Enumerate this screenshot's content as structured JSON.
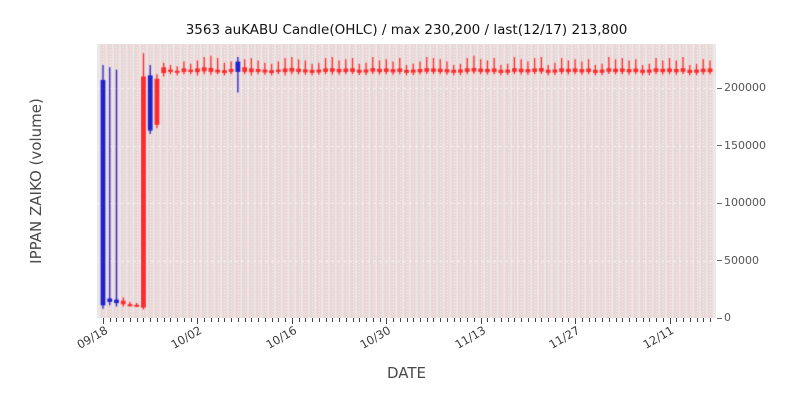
{
  "chart_data": {
    "type": "candlestick",
    "title": "3563 auKABU Candle(OHLC) / max 230,200 / last(12/17) 213,800",
    "xlabel": "DATE",
    "ylabel": "IPPAN ZAIKO (volume)",
    "x_tick_labels": [
      "09/18",
      "10/02",
      "10/16",
      "10/30",
      "11/13",
      "11/27",
      "12/11"
    ],
    "y_ticks": [
      0,
      50000,
      100000,
      150000,
      200000
    ],
    "ylim": [
      0,
      238000
    ],
    "max_value": 230200,
    "last": {
      "date": "12/17",
      "value": 213800
    },
    "legend": "none",
    "grid": "striped-days-with-white-dashes",
    "colors": {
      "up": "#2222cc",
      "down": "#ff2b2b",
      "plot_bg": "#e9e9e9",
      "stripe": "rgba(255,70,70,0.12)"
    },
    "columns": [
      "date",
      "open",
      "high",
      "low",
      "close",
      "direction"
    ],
    "candles": [
      [
        "09/18",
        11000,
        220000,
        8000,
        207000,
        "up"
      ],
      [
        "09/19",
        14000,
        218000,
        11000,
        17000,
        "up"
      ],
      [
        "09/20",
        13000,
        216000,
        10000,
        16000,
        "up"
      ],
      [
        "09/21",
        15000,
        18000,
        10000,
        12000,
        "down"
      ],
      [
        "09/22",
        12000,
        14000,
        10000,
        11000,
        "down"
      ],
      [
        "09/23",
        11500,
        13000,
        9500,
        10500,
        "down"
      ],
      [
        "09/24",
        210000,
        230200,
        7500,
        9000,
        "down"
      ],
      [
        "09/25",
        163000,
        220000,
        160000,
        211000,
        "up"
      ],
      [
        "09/26",
        208000,
        212000,
        165000,
        168000,
        "down"
      ],
      [
        "09/27",
        218000,
        222000,
        210000,
        213000,
        "down"
      ],
      [
        "09/28",
        216000,
        220000,
        212000,
        214000,
        "down"
      ],
      [
        "09/29",
        215000,
        219000,
        211000,
        213500,
        "down"
      ],
      [
        "09/30",
        217000,
        223000,
        212000,
        214000,
        "down"
      ],
      [
        "10/01",
        216000,
        221000,
        212000,
        214000,
        "down"
      ],
      [
        "10/02",
        217000,
        224000,
        211000,
        213800,
        "down"
      ],
      [
        "10/03",
        218000,
        227000,
        212000,
        214500,
        "down"
      ],
      [
        "10/04",
        217500,
        228000,
        211500,
        214000,
        "down"
      ],
      [
        "10/05",
        216000,
        226000,
        212000,
        213500,
        "down"
      ],
      [
        "10/06",
        215500,
        222000,
        211000,
        213000,
        "down"
      ],
      [
        "10/07",
        216500,
        223000,
        212000,
        214000,
        "down"
      ],
      [
        "10/08",
        214000,
        227000,
        196000,
        223000,
        "up"
      ],
      [
        "10/09",
        218000,
        225000,
        212000,
        214000,
        "down"
      ],
      [
        "10/10",
        217000,
        226000,
        211000,
        213800,
        "down"
      ],
      [
        "10/11",
        216500,
        224000,
        212000,
        214000,
        "down"
      ],
      [
        "10/12",
        216000,
        222000,
        211500,
        213500,
        "down"
      ],
      [
        "10/13",
        215500,
        221000,
        211000,
        213000,
        "down"
      ],
      [
        "10/14",
        216000,
        223000,
        212000,
        214000,
        "down"
      ],
      [
        "10/15",
        217000,
        226000,
        211000,
        213800,
        "down"
      ],
      [
        "10/16",
        217500,
        227000,
        212000,
        214200,
        "down"
      ],
      [
        "10/17",
        216800,
        225000,
        211800,
        213900,
        "down"
      ],
      [
        "10/18",
        216200,
        224000,
        211500,
        213600,
        "down"
      ],
      [
        "10/19",
        215800,
        221000,
        211000,
        213200,
        "down"
      ],
      [
        "10/20",
        216000,
        222000,
        211500,
        213500,
        "down"
      ],
      [
        "10/21",
        217000,
        226000,
        212000,
        214000,
        "down"
      ],
      [
        "10/22",
        217200,
        227000,
        211800,
        214100,
        "down"
      ],
      [
        "10/23",
        216600,
        224000,
        211600,
        213700,
        "down"
      ],
      [
        "10/24",
        216900,
        225000,
        211900,
        213900,
        "down"
      ],
      [
        "10/25",
        217100,
        226000,
        212100,
        214000,
        "down"
      ],
      [
        "10/26",
        215900,
        221000,
        211200,
        213300,
        "down"
      ],
      [
        "10/27",
        216100,
        222000,
        211400,
        213500,
        "down"
      ],
      [
        "10/28",
        217300,
        227000,
        212200,
        214200,
        "down"
      ],
      [
        "10/29",
        216700,
        224000,
        211700,
        213800,
        "down"
      ],
      [
        "10/30",
        217000,
        225000,
        212000,
        214000,
        "down"
      ],
      [
        "10/31",
        216400,
        223000,
        211500,
        213600,
        "down"
      ],
      [
        "11/01",
        217000,
        226000,
        212000,
        214000,
        "down"
      ],
      [
        "11/02",
        215800,
        220000,
        211000,
        213200,
        "down"
      ],
      [
        "11/03",
        216000,
        221000,
        211300,
        213400,
        "down"
      ],
      [
        "11/04",
        216500,
        223000,
        211800,
        213700,
        "down"
      ],
      [
        "11/05",
        217200,
        227000,
        212100,
        214100,
        "down"
      ],
      [
        "11/06",
        217000,
        226000,
        212000,
        214000,
        "down"
      ],
      [
        "11/07",
        216800,
        225000,
        211900,
        213900,
        "down"
      ],
      [
        "11/08",
        216300,
        223000,
        211500,
        213600,
        "down"
      ],
      [
        "11/09",
        215900,
        220000,
        211100,
        213200,
        "down"
      ],
      [
        "11/10",
        216100,
        221000,
        211300,
        213400,
        "down"
      ],
      [
        "11/11",
        217100,
        226000,
        212000,
        214000,
        "down"
      ],
      [
        "11/12",
        217400,
        228000,
        212300,
        214300,
        "down"
      ],
      [
        "11/13",
        216900,
        225000,
        211900,
        213900,
        "down"
      ],
      [
        "11/14",
        216600,
        224000,
        211700,
        213700,
        "down"
      ],
      [
        "11/15",
        217000,
        226000,
        212000,
        214000,
        "down"
      ],
      [
        "11/16",
        215800,
        220000,
        211000,
        213100,
        "down"
      ],
      [
        "11/17",
        216000,
        221000,
        211200,
        213300,
        "down"
      ],
      [
        "11/18",
        217200,
        227000,
        212100,
        214100,
        "down"
      ],
      [
        "11/19",
        216800,
        225000,
        211800,
        213800,
        "down"
      ],
      [
        "11/20",
        216500,
        223000,
        211600,
        213600,
        "down"
      ],
      [
        "11/21",
        217000,
        226000,
        212000,
        214000,
        "down"
      ],
      [
        "11/22",
        217300,
        227000,
        212200,
        214200,
        "down"
      ],
      [
        "11/23",
        215900,
        220000,
        211100,
        213200,
        "down"
      ],
      [
        "11/24",
        216100,
        222000,
        211300,
        213400,
        "down"
      ],
      [
        "11/25",
        217100,
        226000,
        212000,
        214000,
        "down"
      ],
      [
        "11/26",
        216700,
        224000,
        211700,
        213800,
        "down"
      ],
      [
        "11/27",
        217000,
        225000,
        212000,
        213900,
        "down"
      ],
      [
        "11/28",
        216400,
        223000,
        211500,
        213600,
        "down"
      ],
      [
        "11/29",
        216900,
        225000,
        211900,
        213900,
        "down"
      ],
      [
        "11/30",
        215800,
        220000,
        211000,
        213100,
        "down"
      ],
      [
        "12/01",
        216000,
        221000,
        211200,
        213300,
        "down"
      ],
      [
        "12/02",
        217200,
        227000,
        212100,
        214100,
        "down"
      ],
      [
        "12/03",
        216800,
        225000,
        211800,
        213800,
        "down"
      ],
      [
        "12/04",
        217000,
        226000,
        212000,
        214000,
        "down"
      ],
      [
        "12/05",
        216500,
        224000,
        211600,
        213700,
        "down"
      ],
      [
        "12/06",
        216900,
        225000,
        211900,
        213900,
        "down"
      ],
      [
        "12/07",
        215900,
        220000,
        211100,
        213200,
        "down"
      ],
      [
        "12/08",
        216100,
        221000,
        211300,
        213400,
        "down"
      ],
      [
        "12/09",
        217100,
        226000,
        212000,
        214000,
        "down"
      ],
      [
        "12/10",
        216700,
        224000,
        211700,
        213800,
        "down"
      ],
      [
        "12/11",
        217000,
        226000,
        212000,
        214000,
        "down"
      ],
      [
        "12/12",
        216600,
        224000,
        211600,
        213700,
        "down"
      ],
      [
        "12/13",
        217200,
        227000,
        212100,
        214100,
        "down"
      ],
      [
        "12/14",
        215800,
        220000,
        211000,
        213100,
        "down"
      ],
      [
        "12/15",
        216000,
        221000,
        211200,
        213300,
        "down"
      ],
      [
        "12/16",
        216800,
        225000,
        211800,
        213800,
        "down"
      ],
      [
        "12/17",
        217000,
        224000,
        212000,
        213800,
        "down"
      ]
    ]
  }
}
